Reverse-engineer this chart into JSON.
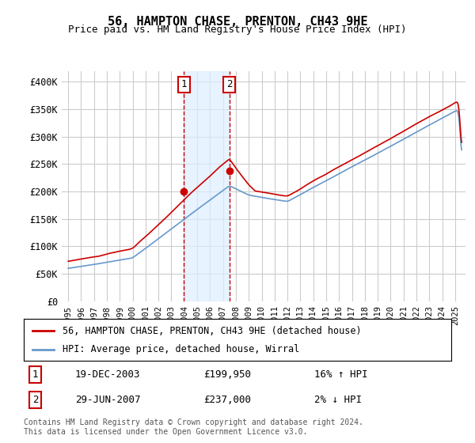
{
  "title": "56, HAMPTON CHASE, PRENTON, CH43 9HE",
  "subtitle": "Price paid vs. HM Land Registry's House Price Index (HPI)",
  "ylabel_ticks": [
    "£0",
    "£50K",
    "£100K",
    "£150K",
    "£200K",
    "£250K",
    "£300K",
    "£350K",
    "£400K"
  ],
  "ytick_values": [
    0,
    50000,
    100000,
    150000,
    200000,
    250000,
    300000,
    350000,
    400000
  ],
  "ylim": [
    0,
    420000
  ],
  "sale1": {
    "date_num": 2003.96,
    "price": 199950,
    "label": "1",
    "date_str": "19-DEC-2003",
    "pct": "16% ↑ HPI"
  },
  "sale2": {
    "date_num": 2007.49,
    "price": 237000,
    "label": "2",
    "date_str": "29-JUN-2007",
    "pct": "2% ↓ HPI"
  },
  "legend_line1": "56, HAMPTON CHASE, PRENTON, CH43 9HE (detached house)",
  "legend_line2": "HPI: Average price, detached house, Wirral",
  "table_row1": [
    "1",
    "19-DEC-2003",
    "£199,950",
    "16% ↑ HPI"
  ],
  "table_row2": [
    "2",
    "29-JUN-2007",
    "£237,000",
    "2% ↓ HPI"
  ],
  "footnote": "Contains HM Land Registry data © Crown copyright and database right 2024.\nThis data is licensed under the Open Government Licence v3.0.",
  "line_color_red": "#cc0000",
  "line_color_blue": "#6699cc",
  "shade_color": "#ddeeff",
  "box_color": "#cc0000",
  "background_color": "#ffffff",
  "grid_color": "#cccccc"
}
